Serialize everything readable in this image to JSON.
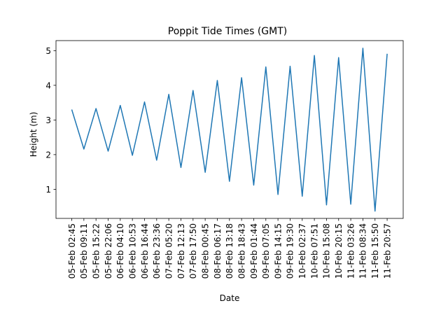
{
  "chart_data": {
    "type": "line",
    "title": "Poppit Tide Times (GMT)",
    "xlabel": "Date",
    "ylabel": "Height (m)",
    "ylim": [
      0.16,
      5.29
    ],
    "yticks": [
      1,
      2,
      3,
      4,
      5
    ],
    "grid": false,
    "line_color": "#1f77b4",
    "x": [
      "05-Feb 02:45",
      "05-Feb 09:11",
      "05-Feb 15:22",
      "05-Feb 22:06",
      "06-Feb 04:10",
      "06-Feb 10:53",
      "06-Feb 16:44",
      "06-Feb 23:36",
      "07-Feb 05:20",
      "07-Feb 12:13",
      "07-Feb 17:50",
      "08-Feb 00:45",
      "08-Feb 06:17",
      "08-Feb 13:18",
      "08-Feb 18:43",
      "09-Feb 01:44",
      "09-Feb 07:05",
      "09-Feb 14:15",
      "09-Feb 19:30",
      "10-Feb 02:37",
      "10-Feb 07:51",
      "10-Feb 15:08",
      "10-Feb 20:15",
      "11-Feb 03:26",
      "11-Feb 08:34",
      "11-Feb 15:50",
      "11-Feb 20:57"
    ],
    "values": [
      3.3,
      2.16,
      3.33,
      2.1,
      3.42,
      1.98,
      3.52,
      1.84,
      3.74,
      1.63,
      3.85,
      1.49,
      4.14,
      1.23,
      4.22,
      1.12,
      4.53,
      0.85,
      4.55,
      0.8,
      4.86,
      0.55,
      4.8,
      0.57,
      5.07,
      0.37,
      4.91
    ]
  }
}
